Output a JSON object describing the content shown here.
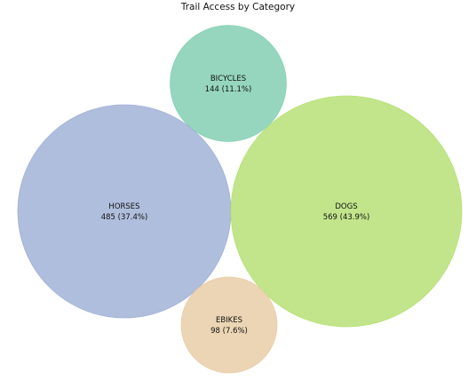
{
  "chart_data": {
    "type": "bubble",
    "title": "Trail Access by Category",
    "items": [
      {
        "label": "BICYCLES",
        "value": 144,
        "percent": "11.1%",
        "value_label": "144 (11.1%)",
        "color": "#7fcdb1"
      },
      {
        "label": "HORSES",
        "value": 485,
        "percent": "37.4%",
        "value_label": "485 (37.4%)",
        "color": "#9fb0d5"
      },
      {
        "label": "DOGS",
        "value": 569,
        "percent": "43.9%",
        "value_label": "569 (43.9%)",
        "color": "#b4df72"
      },
      {
        "label": "EBIKES",
        "value": 98,
        "percent": "7.6%",
        "value_label": "98 (7.6%)",
        "color": "#e8cca4"
      }
    ]
  }
}
